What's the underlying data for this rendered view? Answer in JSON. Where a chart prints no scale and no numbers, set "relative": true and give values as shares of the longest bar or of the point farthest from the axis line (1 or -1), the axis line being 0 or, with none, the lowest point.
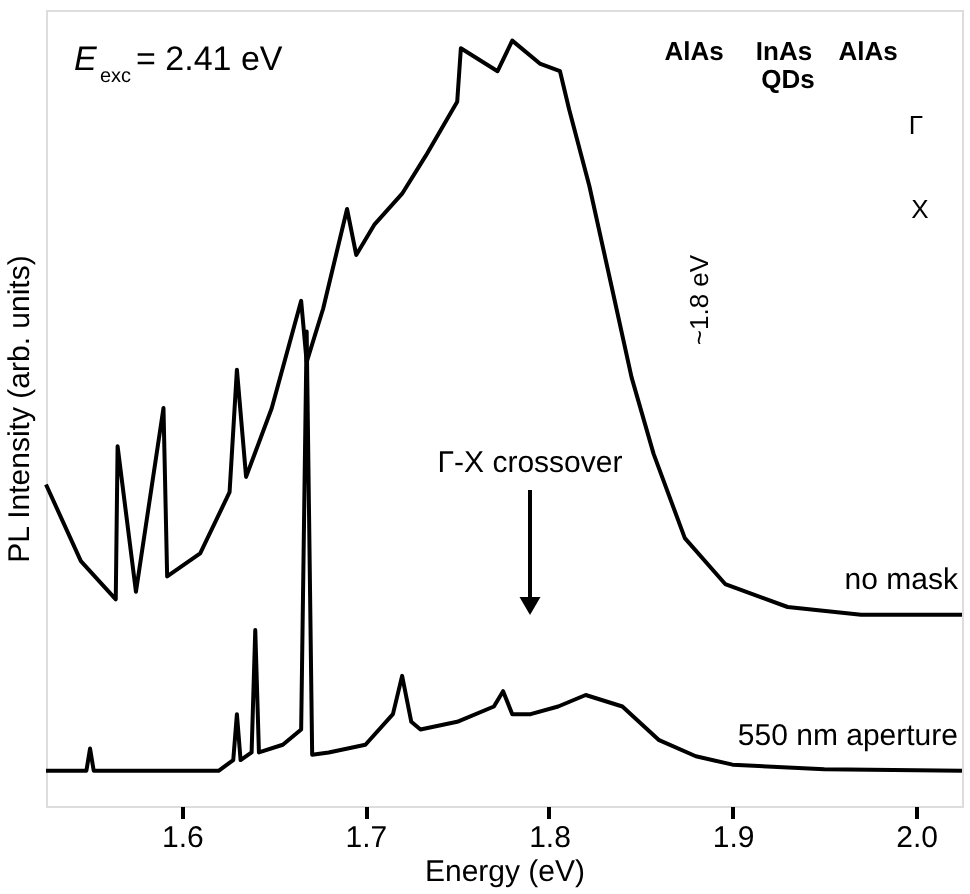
{
  "chart_data": {
    "type": "line",
    "xlabel": "Energy (eV)",
    "ylabel": "PL Intensity (arb. units)",
    "relative": true,
    "xlim": [
      1.526,
      2.025
    ],
    "xticks": [
      1.6,
      1.7,
      1.8,
      1.9,
      {
        "value": 2.0,
        "label": "2.0"
      }
    ],
    "marker": "none",
    "line_style": "solid",
    "series": [
      {
        "name": "no mask",
        "color": "#000000",
        "x": [
          1.526,
          1.545,
          1.564,
          1.565,
          1.575,
          1.59,
          1.592,
          1.61,
          1.626,
          1.63,
          1.635,
          1.649,
          1.665,
          1.668,
          1.677,
          1.69,
          1.695,
          1.705,
          1.72,
          1.733,
          1.75,
          1.752,
          1.772,
          1.78,
          1.795,
          1.806,
          1.811,
          1.822,
          1.834,
          1.845,
          1.857,
          1.874,
          1.896,
          1.93,
          1.97,
          2.025
        ],
        "values": [
          0.42,
          0.32,
          0.27,
          0.47,
          0.28,
          0.52,
          0.3,
          0.33,
          0.41,
          0.57,
          0.43,
          0.52,
          0.66,
          0.58,
          0.65,
          0.78,
          0.72,
          0.76,
          0.8,
          0.85,
          0.92,
          0.99,
          0.96,
          1.0,
          0.97,
          0.96,
          0.91,
          0.81,
          0.68,
          0.56,
          0.46,
          0.35,
          0.29,
          0.26,
          0.25,
          0.25
        ]
      },
      {
        "name": "550 nm aperture",
        "color": "#000000",
        "x": [
          1.526,
          1.548,
          1.55,
          1.552,
          1.62,
          1.628,
          1.63,
          1.632,
          1.638,
          1.64,
          1.642,
          1.655,
          1.665,
          1.668,
          1.671,
          1.68,
          1.7,
          1.715,
          1.72,
          1.725,
          1.73,
          1.75,
          1.77,
          1.775,
          1.78,
          1.79,
          1.805,
          1.82,
          1.84,
          1.86,
          1.88,
          1.9,
          1.95,
          2.025
        ],
        "values": [
          0.046,
          0.046,
          0.075,
          0.046,
          0.046,
          0.06,
          0.12,
          0.06,
          0.07,
          0.23,
          0.07,
          0.08,
          0.1,
          0.62,
          0.067,
          0.07,
          0.08,
          0.12,
          0.17,
          0.11,
          0.1,
          0.11,
          0.13,
          0.15,
          0.12,
          0.12,
          0.13,
          0.145,
          0.13,
          0.086,
          0.065,
          0.054,
          0.048,
          0.046
        ]
      }
    ],
    "annotations": [
      "E$_{exc}$= 2.41 eV",
      "Γ-X crossover",
      "AlAs",
      "InAs",
      "AlAs",
      "QDs",
      "Γ",
      "X",
      "~1.8 eV"
    ]
  }
}
